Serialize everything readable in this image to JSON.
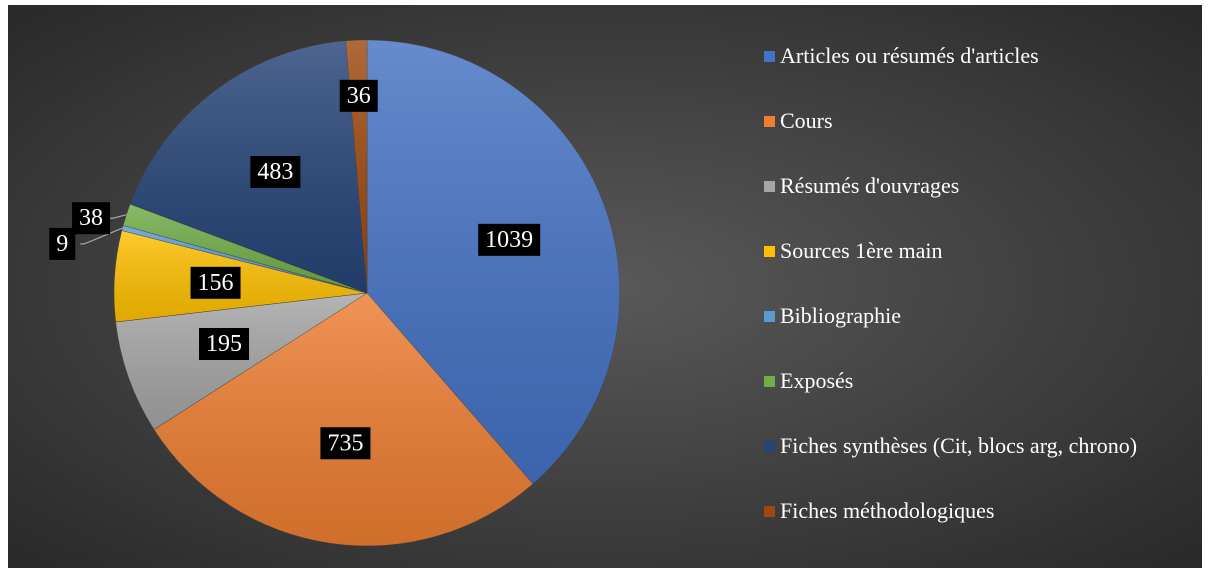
{
  "chart_data": {
    "type": "pie",
    "categories": [
      "Articles ou résumés d'articles",
      "Cours",
      "Résumés d'ouvrages",
      "Sources 1ère main",
      "Bibliographie",
      "Exposés",
      "Fiches synthèses (Cit, blocs arg, chrono)",
      "Fiches méthodologiques"
    ],
    "values": [
      1039,
      735,
      195,
      156,
      9,
      38,
      483,
      36
    ],
    "colors": [
      "#4472c4",
      "#ed7d31",
      "#a5a5a5",
      "#ffc000",
      "#5b9bd5",
      "#70ad47",
      "#264478",
      "#9e480e"
    ],
    "legend": "right"
  }
}
